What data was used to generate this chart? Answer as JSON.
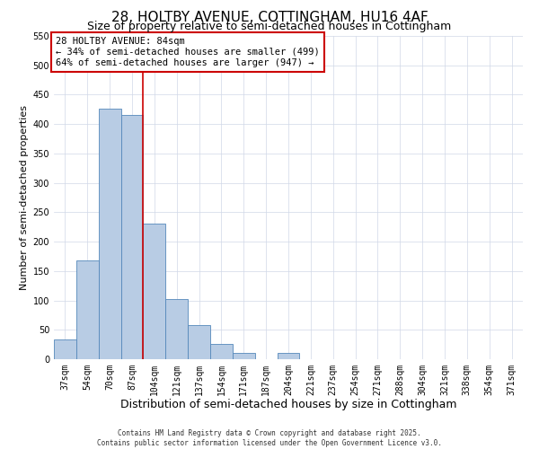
{
  "title": "28, HOLTBY AVENUE, COTTINGHAM, HU16 4AF",
  "subtitle": "Size of property relative to semi-detached houses in Cottingham",
  "xlabel": "Distribution of semi-detached houses by size in Cottingham",
  "ylabel": "Number of semi-detached properties",
  "bar_labels": [
    "37sqm",
    "54sqm",
    "70sqm",
    "87sqm",
    "104sqm",
    "121sqm",
    "137sqm",
    "154sqm",
    "171sqm",
    "187sqm",
    "204sqm",
    "221sqm",
    "237sqm",
    "254sqm",
    "271sqm",
    "288sqm",
    "304sqm",
    "321sqm",
    "338sqm",
    "354sqm",
    "371sqm"
  ],
  "bar_values": [
    33,
    168,
    426,
    416,
    230,
    102,
    58,
    26,
    11,
    0,
    10,
    0,
    0,
    0,
    0,
    0,
    0,
    0,
    0,
    0,
    0
  ],
  "bar_color": "#b8cce4",
  "bar_edge_color": "#5588bb",
  "grid_color": "#d0d8e8",
  "vline_x": 3.5,
  "vline_color": "#cc0000",
  "annotation_title": "28 HOLTBY AVENUE: 84sqm",
  "annotation_line1": "← 34% of semi-detached houses are smaller (499)",
  "annotation_line2": "64% of semi-detached houses are larger (947) →",
  "annotation_box_color": "#cc0000",
  "ylim": [
    0,
    550
  ],
  "yticks": [
    0,
    50,
    100,
    150,
    200,
    250,
    300,
    350,
    400,
    450,
    500,
    550
  ],
  "footer1": "Contains HM Land Registry data © Crown copyright and database right 2025.",
  "footer2": "Contains public sector information licensed under the Open Government Licence v3.0.",
  "title_fontsize": 11,
  "subtitle_fontsize": 9,
  "xlabel_fontsize": 9,
  "ylabel_fontsize": 8,
  "tick_fontsize": 7,
  "annotation_fontsize": 7.5,
  "footer_fontsize": 5.5
}
